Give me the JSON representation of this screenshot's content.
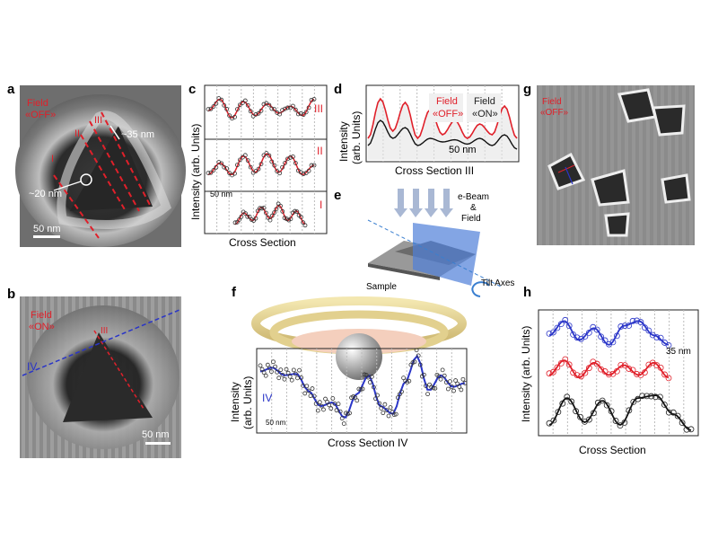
{
  "panels": {
    "a": {
      "label": "a",
      "field_tag": "Field",
      "field_state": "«OFF»",
      "lines": [
        "I",
        "II",
        "III"
      ],
      "dim1": "~35 nm",
      "dim2": "~20 nm",
      "scale": "50 nm"
    },
    "b": {
      "label": "b",
      "field_tag": "Field",
      "field_state": "«ON»",
      "line_red": "III",
      "line_blue": "IV",
      "scale": "50 nm"
    },
    "c": {
      "label": "c",
      "ylabel": "Intensity (arb. Units)",
      "xlabel": "Cross Section",
      "rows": [
        "III",
        "II",
        "I"
      ],
      "scale": "50 nm"
    },
    "d": {
      "label": "d",
      "ylabel": "Intensity",
      "ylabel2": "(arb. Units)",
      "xlabel": "Cross Section III",
      "off_tag": "Field",
      "off_state": "«OFF»",
      "on_tag": "Field",
      "on_state": "«ON»",
      "scale": "50 nm"
    },
    "e": {
      "label": "e",
      "beam1": "e-Beam",
      "beam2": "&",
      "beam3": "Field",
      "sample": "Sample",
      "tilt": "Tilt Axes"
    },
    "f": {
      "label": "f",
      "ylabel": "Intensity",
      "ylabel2": "(arb. Units)",
      "xlabel": "Cross Section IV",
      "series": "IV",
      "scale": "50 nm"
    },
    "g": {
      "label": "g",
      "field_tag": "Field",
      "field_state": "«OFF»"
    },
    "h": {
      "label": "h",
      "ylabel": "Intensity (arb. Units)",
      "xlabel": "Cross Section",
      "scale": "35 nm"
    }
  },
  "colors": {
    "red": "#e0202a",
    "blue": "#2a35c8",
    "black": "#111111"
  },
  "chart_data": [
    {
      "type": "line",
      "title": "c III",
      "series": [
        {
          "name": "III",
          "values": [
            0.55,
            0.8,
            0.4,
            0.75,
            0.45,
            0.7,
            0.5,
            0.65,
            0.45,
            0.8
          ]
        }
      ]
    },
    {
      "type": "line",
      "title": "c II",
      "series": [
        {
          "name": "II",
          "values": [
            0.3,
            0.55,
            0.3,
            0.7,
            0.35,
            0.75,
            0.35,
            0.7,
            0.3,
            0.5
          ]
        }
      ]
    },
    {
      "type": "line",
      "title": "c I",
      "series": [
        {
          "name": "I",
          "values": [
            0.2,
            0.5,
            0.3,
            0.65,
            0.35,
            0.7,
            0.3,
            0.55,
            0.2
          ]
        }
      ]
    },
    {
      "type": "line",
      "title": "d",
      "xlabel": "Cross Section III",
      "series": [
        {
          "name": "Field «OFF»",
          "values": [
            0.3,
            0.85,
            0.4,
            0.8,
            0.3,
            0.7,
            0.35,
            0.55,
            0.3,
            0.5,
            0.35,
            0.75,
            0.3
          ]
        },
        {
          "name": "Field «ON»",
          "values": [
            0.2,
            0.55,
            0.3,
            0.45,
            0.2,
            0.3,
            0.25,
            0.28,
            0.22,
            0.3,
            0.2,
            0.35,
            0.15
          ]
        }
      ]
    },
    {
      "type": "line",
      "title": "f",
      "xlabel": "Cross Section IV",
      "series": [
        {
          "name": "IV",
          "values": [
            0.75,
            0.8,
            0.7,
            0.72,
            0.5,
            0.3,
            0.35,
            0.15,
            0.45,
            0.7,
            0.3,
            0.2,
            0.6,
            0.95,
            0.5,
            0.7,
            0.55,
            0.6
          ]
        }
      ]
    },
    {
      "type": "line",
      "title": "h",
      "xlabel": "Cross Section",
      "series": [
        {
          "name": "blue",
          "values": [
            0.6,
            0.9,
            0.5,
            0.75,
            0.4,
            0.8,
            0.9,
            0.6,
            0.4
          ]
        },
        {
          "name": "red",
          "values": [
            0.5,
            0.8,
            0.45,
            0.75,
            0.5,
            0.7,
            0.5,
            0.75,
            0.45
          ]
        },
        {
          "name": "black",
          "values": [
            0.2,
            0.7,
            0.25,
            0.65,
            0.2,
            0.7,
            0.75,
            0.4,
            0.1
          ]
        }
      ]
    }
  ]
}
